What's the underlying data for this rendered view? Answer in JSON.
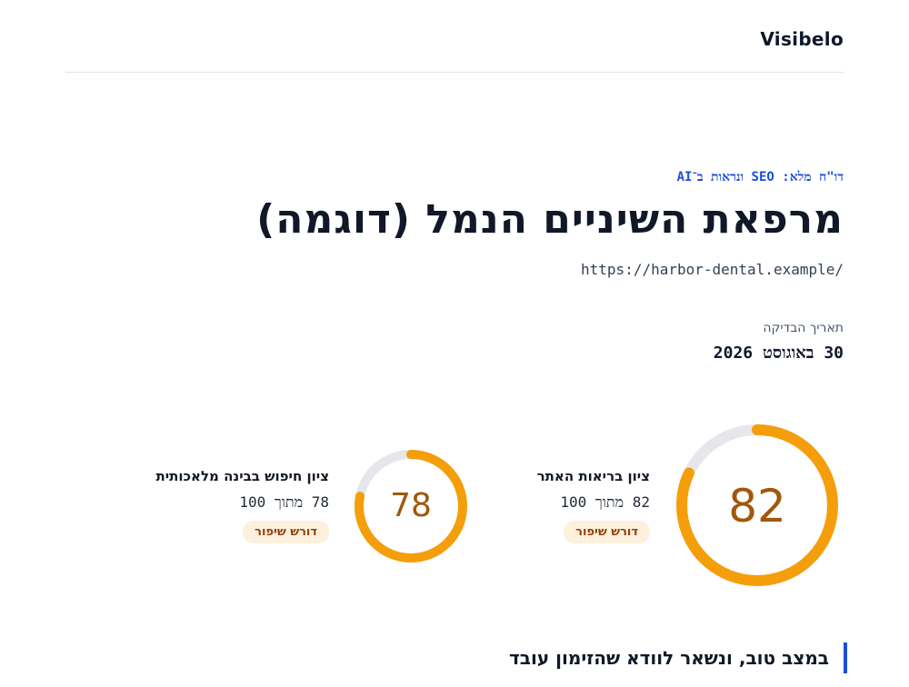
{
  "header": {
    "brand": "Visibelo"
  },
  "report": {
    "eyebrow": "דו\"ח מלא: SEO ונראות ב־AI",
    "title": "מרפאת השיניים הנמל (דוגמה)",
    "url": "https://harbor-dental.example/",
    "date_label": "תאריך הבדיקה",
    "date_value": "30 באוגוסט 2026"
  },
  "scores": {
    "health": {
      "label": "ציון בריאות האתר",
      "value": "82",
      "out_of": "82 מתוך 100",
      "fraction": 0.82,
      "status": "דורש שיפור"
    },
    "ai": {
      "label": "ציון חיפוש בבינה מלאכותית",
      "value": "78",
      "out_of": "78 מתוך 100",
      "fraction": 0.78,
      "status": "דורש שיפור"
    }
  },
  "callout": {
    "text": "במצב טוב, ונשאר לוודא שהזימון עובד"
  },
  "colors": {
    "ring_fill": "#f59e0b",
    "ring_track": "#e5e7eb",
    "accent": "#1d4ed8",
    "score_text": "#a0580b"
  }
}
